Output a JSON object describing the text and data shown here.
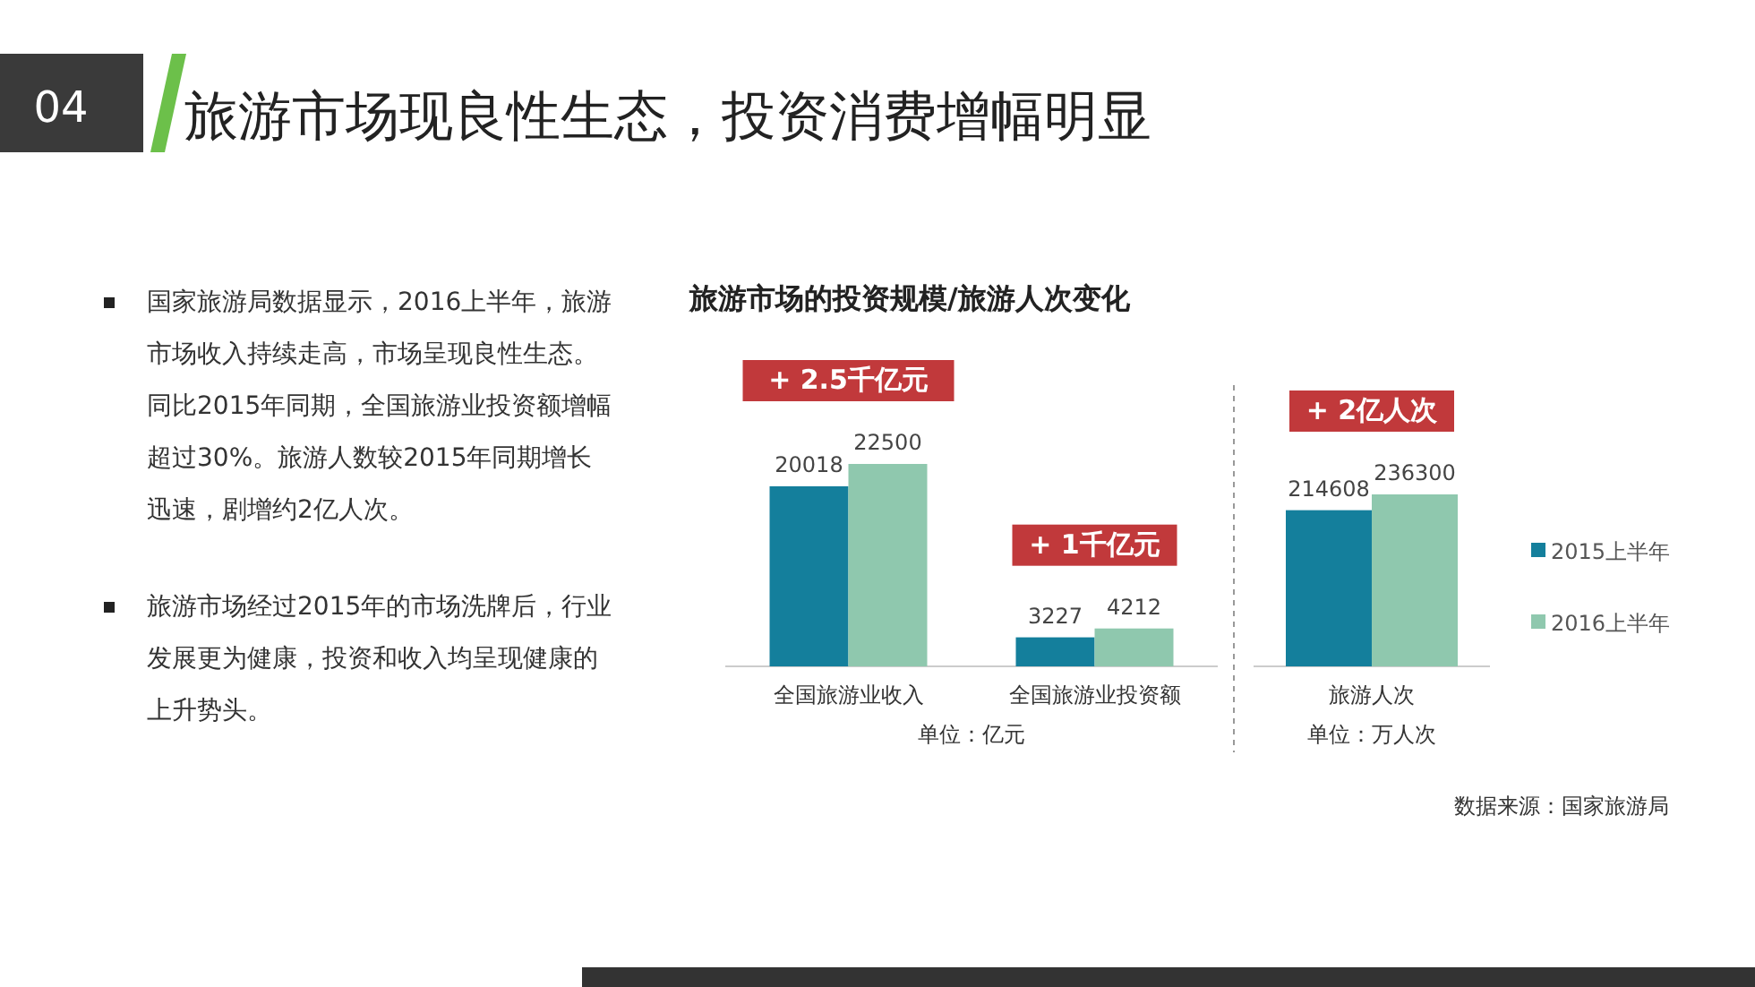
{
  "chart_data": [
    {
      "type": "other",
      "title": "旅游市场现良性生态，投资消费增幅明显",
      "annotations": [
        "04",
        "国家旅游局数据显示，2016上半年，旅游市场收入持续走高，市场呈现良性生态。同比2015年同期，全国旅游业投资额增幅超过30%。旅游人数较2015年同期增长迅速，剧增约2亿人次。",
        "旅游市场经过2015年的市场洗牌后，行业发展更为健康，投资和收入均呈现健康的上升势头。"
      ]
    },
    {
      "type": "bar",
      "title": "旅游市场的投资规模/旅游人次变化",
      "xlabel": "单位：亿元",
      "categories": [
        "全国旅游业收入",
        "全国旅游业投资额"
      ],
      "series": [
        {
          "color": "#147f9c",
          "values": [
            20018,
            3227
          ]
        },
        {
          "color": "#8fc8ae",
          "values": [
            22500,
            4212
          ]
        }
      ],
      "data_labels": true,
      "annotations": [
        "+ 2.5千亿元",
        "+ 1千亿元"
      ]
    },
    {
      "type": "bar",
      "xlabel": "单位：万人次",
      "categories": [
        "旅游人次"
      ],
      "series": [
        {
          "name": "2015上半年",
          "color": "#147f9c",
          "values": [
            214608
          ]
        },
        {
          "name": "2016上半年",
          "color": "#8fc8ae",
          "values": [
            236300
          ]
        }
      ],
      "data_labels": true,
      "legend": "right",
      "annotations": [
        "+ 2亿人次",
        "数据来源：国家旅游局"
      ]
    }
  ]
}
